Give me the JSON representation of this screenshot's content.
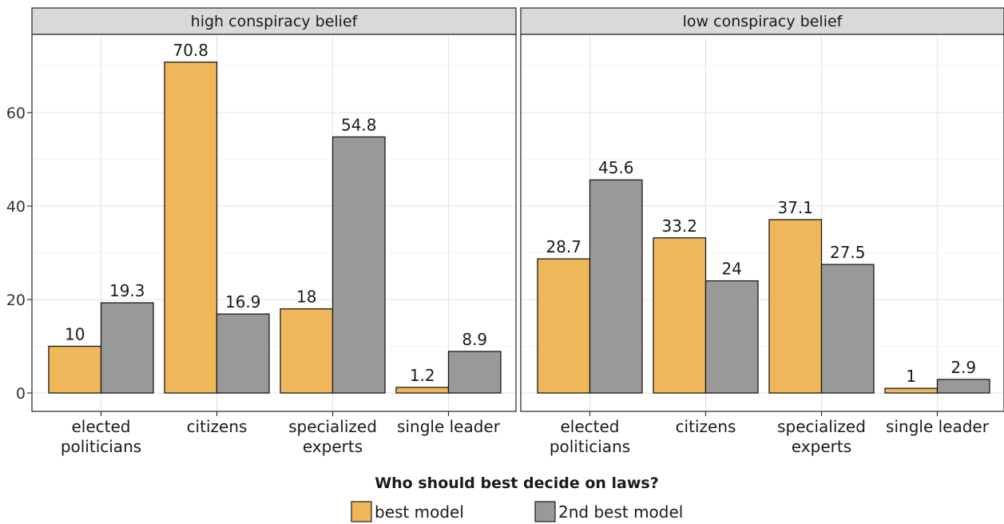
{
  "chart_data": {
    "type": "bar",
    "xlabel": "Who should best decide on laws?",
    "ylabel": "",
    "ylim": [
      0,
      75
    ],
    "yticks": [
      0,
      20,
      40,
      60
    ],
    "grid": true,
    "legend_position": "bottom",
    "categories": [
      [
        "elected",
        "politicians"
      ],
      [
        "citizens"
      ],
      [
        "specialized",
        "experts"
      ],
      [
        "single leader"
      ]
    ],
    "panels": [
      {
        "title": "high conspiracy belief",
        "series": [
          {
            "name": "best model",
            "values": [
              10,
              70.8,
              18,
              1.2
            ],
            "labels": [
              "10",
              "70.8",
              "18",
              "1.2"
            ]
          },
          {
            "name": "2nd best model",
            "values": [
              19.3,
              16.9,
              54.8,
              8.9
            ],
            "labels": [
              "19.3",
              "16.9",
              "54.8",
              "8.9"
            ]
          }
        ]
      },
      {
        "title": "low conspiracy belief",
        "series": [
          {
            "name": "best model",
            "values": [
              28.7,
              33.2,
              37.1,
              1
            ],
            "labels": [
              "28.7",
              "33.2",
              "37.1",
              "1"
            ]
          },
          {
            "name": "2nd best model",
            "values": [
              45.6,
              24,
              27.5,
              2.9
            ],
            "labels": [
              "45.6",
              "24",
              "27.5",
              "2.9"
            ]
          }
        ]
      }
    ],
    "colors": {
      "best model": "#f0b65a",
      "2nd best model": "#999999"
    }
  }
}
